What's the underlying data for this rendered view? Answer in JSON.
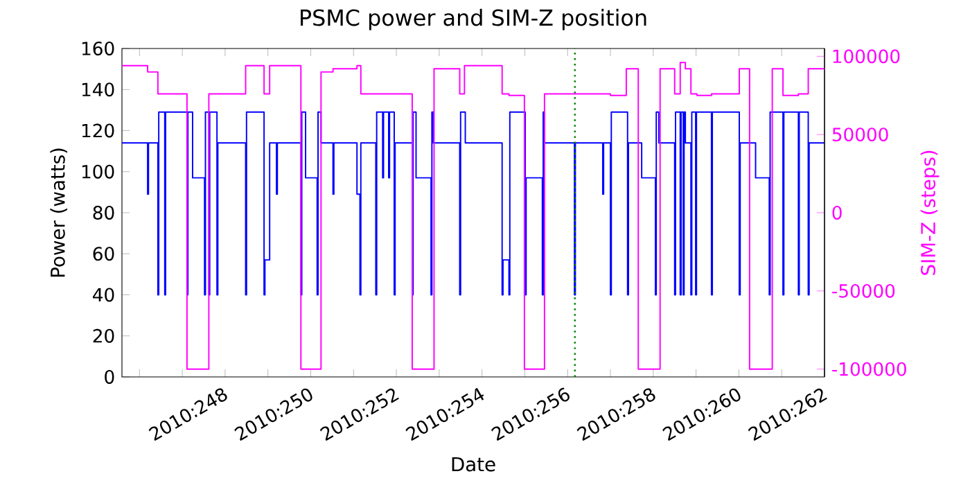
{
  "chart_data": {
    "type": "step",
    "title": "PSMC power and SIM-Z position",
    "xlabel": "Date",
    "ylabel": "Power (watts)",
    "y2label": "SIM-Z (steps)",
    "xlim": [
      "2010-09-02T14:10",
      "2010-09-19T00:00"
    ],
    "xticks": [
      {
        "value": "2010-09-03",
        "label": null
      },
      {
        "value": "2010-09-04",
        "label": null
      },
      {
        "value": "2010-09-05",
        "label": "2010:248"
      },
      {
        "value": "2010-09-06",
        "label": null
      },
      {
        "value": "2010-09-07",
        "label": "2010:250"
      },
      {
        "value": "2010-09-08",
        "label": null
      },
      {
        "value": "2010-09-09",
        "label": "2010:252"
      },
      {
        "value": "2010-09-10",
        "label": null
      },
      {
        "value": "2010-09-11",
        "label": "2010:254"
      },
      {
        "value": "2010-09-12",
        "label": null
      },
      {
        "value": "2010-09-13",
        "label": "2010:256"
      },
      {
        "value": "2010-09-14",
        "label": null
      },
      {
        "value": "2010-09-15",
        "label": "2010:258"
      },
      {
        "value": "2010-09-16",
        "label": null
      },
      {
        "value": "2010-09-17",
        "label": "2010:260"
      },
      {
        "value": "2010-09-18",
        "label": null
      },
      {
        "value": "2010-09-19",
        "label": "2010:262"
      }
    ],
    "ylim": [
      0,
      160
    ],
    "yticks": [
      0,
      20,
      40,
      60,
      80,
      100,
      120,
      140,
      160
    ],
    "y2lim": [
      -105000,
      105000
    ],
    "y2ticks": [
      -100000,
      -50000,
      0,
      50000,
      100000
    ],
    "series": [
      {
        "color": "#0000ff",
        "x": [
          "2010-09-02T14:10",
          "2010-09-03T04:34",
          "2010-09-03T05:02",
          "2010-09-03T10:19",
          "2010-09-03T10:48",
          "2010-09-03T14:10",
          "2010-09-03T14:38",
          "2010-09-04T02:38",
          "2010-09-04T03:07",
          "2010-09-04T05:46",
          "2010-09-04T12:29",
          "2010-09-04T12:58",
          "2010-09-04T14:53",
          "2010-09-04T15:22",
          "2010-09-04T19:26",
          "2010-09-04T19:55",
          "2010-09-05T11:31",
          "2010-09-05T12:00",
          "2010-09-05T21:50",
          "2010-09-05T22:19",
          "2010-09-06T00:58",
          "2010-09-06T04:48",
          "2010-09-06T05:17",
          "2010-09-06T18:29",
          "2010-09-06T18:58",
          "2010-09-06T21:07",
          "2010-09-07T03:36",
          "2010-09-07T04:05",
          "2010-09-07T05:46",
          "2010-09-07T12:29",
          "2010-09-07T12:58",
          "2010-09-08T01:55",
          "2010-09-08T03:36",
          "2010-09-08T04:05",
          "2010-09-08T12:29",
          "2010-09-08T12:58",
          "2010-09-08T16:19",
          "2010-09-08T16:48",
          "2010-09-08T19:41",
          "2010-09-08T20:10",
          "2010-09-08T22:48",
          "2010-09-08T23:17",
          "2010-09-09T08:53",
          "2010-09-09T09:22",
          "2010-09-09T11:02",
          "2010-09-09T19:26",
          "2010-09-09T19:55",
          "2010-09-09T20:38",
          "2010-09-10T11:31",
          "2010-09-10T12:00",
          "2010-09-10T14:38",
          "2010-09-11T11:17",
          "2010-09-11T11:46",
          "2010-09-11T15:07",
          "2010-09-11T15:36",
          "2010-09-12T00:14",
          "2010-09-12T00:43",
          "2010-09-12T09:50",
          "2010-09-12T10:19",
          "2010-09-12T11:02",
          "2010-09-13T03:50",
          "2010-09-13T04:19",
          "2010-09-13T19:41",
          "2010-09-13T20:10",
          "2010-09-14T00:00",
          "2010-09-14T00:29",
          "2010-09-14T09:36",
          "2010-09-14T10:05",
          "2010-09-14T17:31",
          "2010-09-15T01:12",
          "2010-09-15T01:41",
          "2010-09-15T03:07",
          "2010-09-15T12:00",
          "2010-09-15T12:29",
          "2010-09-15T15:07",
          "2010-09-15T15:36",
          "2010-09-15T16:48",
          "2010-09-15T17:17",
          "2010-09-15T18:00",
          "2010-09-15T21:07",
          "2010-09-15T21:36",
          "2010-09-15T23:46",
          "2010-09-16T00:14",
          "2010-09-16T08:38",
          "2010-09-16T09:07",
          "2010-09-17T00:14",
          "2010-09-17T00:43",
          "2010-09-17T09:22",
          "2010-09-17T17:02",
          "2010-09-17T17:31",
          "2010-09-18T00:43",
          "2010-09-18T01:12",
          "2010-09-18T09:22",
          "2010-09-18T09:50",
          "2010-09-18T14:53",
          "2010-09-18T15:22",
          "2010-09-19T00:00"
        ],
        "values": [
          114,
          89,
          114,
          40,
          129,
          40,
          129,
          40,
          129,
          97,
          40,
          129,
          40,
          129,
          40,
          114,
          40,
          129,
          40,
          57,
          114,
          89,
          114,
          40,
          129,
          97,
          40,
          129,
          114,
          89,
          114,
          89,
          40,
          114,
          40,
          129,
          97,
          129,
          97,
          129,
          40,
          114,
          40,
          129,
          97,
          40,
          129,
          114,
          40,
          129,
          114,
          40,
          57,
          40,
          129,
          40,
          97,
          40,
          129,
          114,
          40,
          114,
          89,
          114,
          40,
          129,
          40,
          114,
          97,
          40,
          129,
          114,
          40,
          129,
          40,
          129,
          40,
          129,
          114,
          40,
          129,
          40,
          129,
          40,
          129,
          40,
          114,
          97,
          40,
          129,
          40,
          129,
          40,
          129,
          40,
          114,
          114
        ]
      },
      {
        "color": "#ff00ff",
        "axis": "y2",
        "x": [
          "2010-09-02T14:10",
          "2010-09-03T04:34",
          "2010-09-03T10:19",
          "2010-09-04T02:38",
          "2010-09-04T14:53",
          "2010-09-05T11:31",
          "2010-09-05T21:50",
          "2010-09-06T00:58",
          "2010-09-06T18:29",
          "2010-09-07T05:46",
          "2010-09-07T12:29",
          "2010-09-08T01:55",
          "2010-09-08T04:05",
          "2010-09-09T08:53",
          "2010-09-09T21:07",
          "2010-09-10T11:31",
          "2010-09-10T14:10",
          "2010-09-11T11:17",
          "2010-09-11T15:07",
          "2010-09-11T23:46",
          "2010-09-12T11:02",
          "2010-09-14T00:00",
          "2010-09-14T08:53",
          "2010-09-14T15:36",
          "2010-09-15T03:50",
          "2010-09-15T12:00",
          "2010-09-15T15:07",
          "2010-09-15T18:00",
          "2010-09-15T21:07",
          "2010-09-16T00:29",
          "2010-09-16T08:38",
          "2010-09-17T00:14",
          "2010-09-17T06:00",
          "2010-09-17T18:43",
          "2010-09-18T00:43",
          "2010-09-18T09:22",
          "2010-09-18T14:53",
          "2010-09-19T00:00"
        ],
        "values": [
          94000,
          90000,
          76000,
          -100000,
          76000,
          94000,
          76000,
          94000,
          -100000,
          90000,
          92000,
          94000,
          76000,
          -100000,
          92000,
          76000,
          94000,
          76000,
          75000,
          -100000,
          76000,
          75000,
          92000,
          -100000,
          92000,
          76000,
          96000,
          92000,
          76000,
          75000,
          76000,
          92000,
          -100000,
          92000,
          75000,
          76000,
          92000,
          92000
        ]
      }
    ],
    "ref_lines": [
      {
        "axis": "x",
        "value": "2010-09-13T04:05",
        "color": "#008000",
        "line_style": "dotted"
      }
    ]
  }
}
